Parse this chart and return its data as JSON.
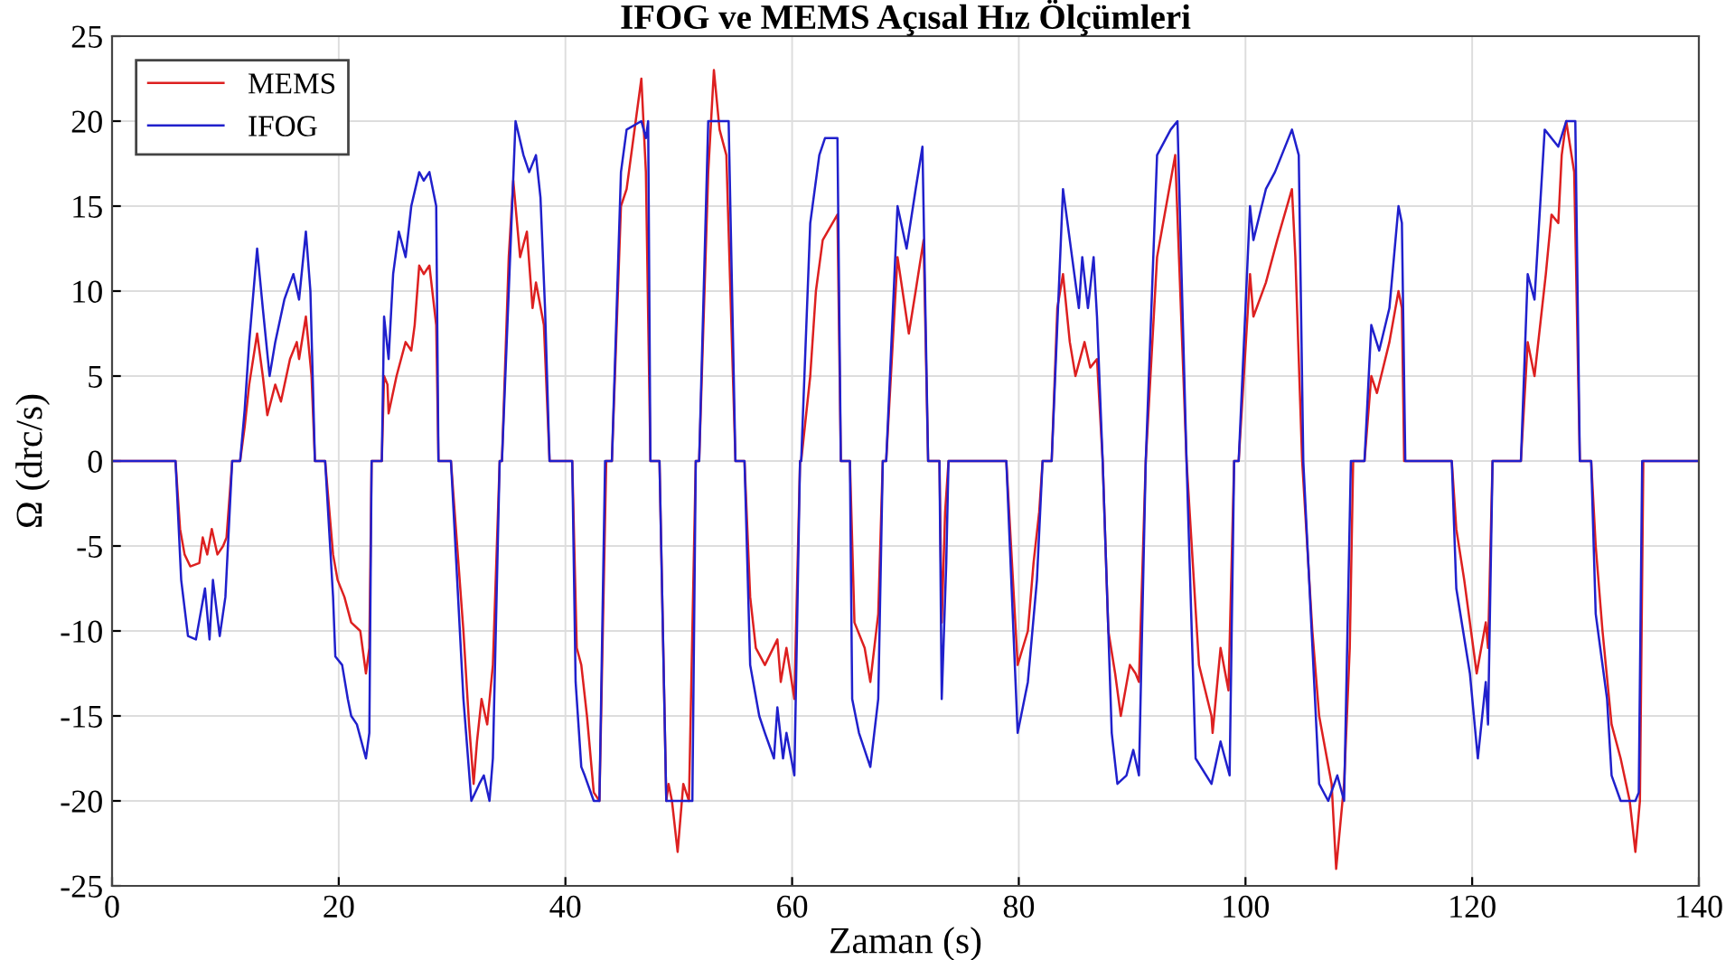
{
  "chart_data": {
    "type": "line",
    "title": "IFOG ve MEMS Açısal Hız Ölçümleri",
    "xlabel": "Zaman (s)",
    "ylabel": "Ω (drc/s)",
    "xlim": [
      0,
      140
    ],
    "xticks": [
      0,
      20,
      40,
      60,
      80,
      100,
      120,
      140
    ],
    "ylim": [
      -25,
      25
    ],
    "yticks": [
      -25,
      -20,
      -15,
      -10,
      -5,
      0,
      5,
      10,
      15,
      20,
      25
    ],
    "grid": true,
    "legend": "top left",
    "line_style": "solid",
    "marker": "none",
    "series": [
      {
        "name": "MEMS",
        "color": "#dd2020",
        "x": [
          0,
          5.6,
          6,
          6.4,
          6.9,
          7.7,
          8,
          8.4,
          8.8,
          9.3,
          9.8,
          10.1,
          10.6,
          11.3,
          11.7,
          12.1,
          12.8,
          13.3,
          13.7,
          14.4,
          14.9,
          15.7,
          16.3,
          16.5,
          17.1,
          17.6,
          17.9,
          18.8,
          19.5,
          19.9,
          20.5,
          21.1,
          21.9,
          22.4,
          22.7,
          22.9,
          23.8,
          24,
          24.3,
          24.4,
          25.1,
          25.9,
          26.4,
          26.7,
          27.1,
          27.5,
          28,
          28.6,
          28.8,
          29.9,
          31,
          31.5,
          31.9,
          32.2,
          32.6,
          33.1,
          33.6,
          34.2,
          34.4,
          35,
          35.4,
          36,
          36.6,
          37.1,
          37.4,
          38.1,
          38.6,
          40.6,
          41,
          41.4,
          41.9,
          42.5,
          43,
          43.6,
          44.1,
          44.9,
          45.4,
          45.9,
          46.7,
          47.1,
          47.5,
          48.3,
          48.9,
          49.1,
          49.4,
          49.9,
          50.4,
          50.9,
          51.5,
          51.8,
          52.6,
          53.1,
          53.6,
          54.2,
          55,
          55.8,
          56.3,
          56.8,
          57.6,
          58.7,
          59,
          59.5,
          60.2,
          60.7,
          60.8,
          61.6,
          62.1,
          62.7,
          64,
          64.3,
          65.1,
          65.5,
          66.4,
          66.9,
          67.6,
          68,
          68.3,
          69.3,
          70.3,
          70.9,
          71.6,
          72,
          73,
          73.2,
          73.5,
          73.8,
          78.9,
          79.9,
          80.8,
          81.3,
          81.8,
          82.1,
          82.9,
          83.4,
          83.9,
          84.5,
          85,
          85.8,
          86.3,
          86.9,
          87.4,
          87.9,
          88.5,
          89,
          89.8,
          90.3,
          90.6,
          91.2,
          92.2,
          93.8,
          94.8,
          95.9,
          97,
          97.1,
          97.8,
          98.5,
          99,
          99.4,
          100.4,
          100.7,
          101.8,
          102.8,
          104.1,
          104.4,
          105,
          105.9,
          106.5,
          107.6,
          108,
          108.7,
          109.2,
          109.5,
          110.5,
          111.1,
          111.6,
          112.7,
          113.5,
          113.8,
          114,
          118.2,
          118.6,
          119.3,
          120.4,
          121.2,
          121.4,
          121.8,
          124.3,
          124.9,
          125.5,
          126.5,
          127,
          127.6,
          127.9,
          128.3,
          129,
          129.5,
          130.5,
          130.9,
          131.5,
          132.3,
          133.1,
          133.9,
          134.4,
          134.8,
          135.1,
          140
        ],
        "values": [
          0,
          0,
          -4,
          -5.5,
          -6.2,
          -6,
          -4.5,
          -5.5,
          -4,
          -5.5,
          -5,
          -4.5,
          0,
          0,
          2,
          4.5,
          7.5,
          5,
          2.7,
          4.5,
          3.5,
          6,
          7,
          6,
          8.5,
          5,
          0,
          0,
          -5.5,
          -7,
          -8,
          -9.5,
          -10,
          -12.5,
          -11,
          0,
          0,
          5,
          4.5,
          2.8,
          5,
          7,
          6.5,
          8,
          11.5,
          11,
          11.5,
          8,
          0,
          0,
          -10,
          -15.5,
          -19,
          -16.5,
          -14,
          -15.5,
          -12,
          0,
          0,
          12,
          16.5,
          12,
          13.5,
          9,
          10.5,
          8,
          0,
          0,
          -11,
          -12,
          -15,
          -19.5,
          -20,
          0,
          0,
          15,
          16,
          18.5,
          22.5,
          17,
          0,
          0,
          -20,
          -19,
          -20,
          -23,
          -19,
          -20,
          0,
          0,
          17,
          23,
          19.5,
          18,
          0,
          0,
          -8,
          -11,
          -12,
          -10.5,
          -13,
          -11,
          -14,
          0,
          0,
          5,
          10,
          13,
          14.5,
          0,
          0,
          -9.5,
          -11,
          -13,
          -9,
          0,
          0,
          12,
          7.5,
          10,
          13,
          0,
          0,
          -9.5,
          -3,
          0,
          0,
          -12,
          -10,
          -6,
          -3,
          0,
          0,
          9,
          11,
          7,
          5,
          7,
          5.5,
          6,
          0,
          -10,
          -12.5,
          -15,
          -12,
          -12.5,
          -13,
          0,
          12,
          18,
          0,
          -12,
          -15,
          -16,
          -11,
          -13.5,
          0,
          0,
          11,
          8.5,
          10.5,
          13,
          16,
          12,
          0,
          -10,
          -15,
          -19,
          -24,
          -19,
          -11,
          0,
          0,
          5,
          4,
          7,
          10,
          9,
          0,
          0,
          -4,
          -7,
          -12.5,
          -9.5,
          -11,
          0,
          0,
          7,
          5,
          11,
          14.5,
          14,
          18,
          20,
          17,
          0,
          0,
          -5,
          -10,
          -15.5,
          -17.5,
          -20,
          -23,
          -20,
          0,
          0
        ]
      },
      {
        "name": "IFOG",
        "color": "#2020cc",
        "x": [
          0,
          5.6,
          6.1,
          6.7,
          7.4,
          8.2,
          8.6,
          8.9,
          9.5,
          10,
          10.6,
          11.3,
          11.7,
          12.1,
          12.8,
          13.3,
          13.9,
          14.4,
          15.2,
          16,
          16.5,
          17.1,
          17.5,
          17.9,
          18.8,
          19.5,
          19.7,
          20.3,
          20.8,
          21.1,
          21.6,
          22.4,
          22.7,
          22.9,
          23.8,
          24,
          24.4,
          24.8,
          25.3,
          25.9,
          26.4,
          27.1,
          27.5,
          28,
          28.6,
          28.8,
          29.9,
          31,
          31.7,
          32.4,
          32.8,
          33.3,
          33.6,
          34.2,
          34.4,
          35.6,
          36.3,
          36.8,
          37.4,
          37.8,
          38.2,
          38.6,
          40.6,
          40.9,
          41.4,
          41.7,
          42.5,
          43,
          43.5,
          44.1,
          44.9,
          45.4,
          46.7,
          47.1,
          47.3,
          47.5,
          48.3,
          48.9,
          51.2,
          51.5,
          51.8,
          52.6,
          54.4,
          55,
          55.8,
          56.3,
          57.1,
          57.6,
          58.4,
          58.7,
          59.2,
          59.5,
          60.2,
          60.7,
          60.8,
          61.6,
          62.4,
          62.9,
          64,
          64.3,
          65.1,
          65.3,
          65.9,
          66.9,
          67.6,
          68,
          68.3,
          69.3,
          70.1,
          70.9,
          71.5,
          72,
          73,
          73.2,
          73.6,
          73.8,
          78.9,
          79.9,
          80.8,
          81.6,
          82.1,
          82.9,
          83.9,
          84.7,
          85.3,
          85.6,
          86.1,
          86.6,
          86.9,
          87.4,
          88.2,
          88.7,
          89.5,
          90.1,
          90.6,
          91.2,
          92.2,
          93.4,
          94,
          94.8,
          95.6,
          97,
          97.8,
          98.6,
          99,
          99.4,
          100.4,
          100.7,
          101.8,
          102.6,
          104.1,
          104.7,
          105.1,
          106.5,
          107.3,
          108.1,
          108.7,
          109.3,
          110.5,
          111.1,
          111.8,
          112.7,
          113.5,
          113.8,
          114.1,
          118.2,
          118.6,
          119.8,
          120.5,
          121.2,
          121.4,
          121.8,
          124.3,
          124.9,
          125.5,
          126.4,
          127.6,
          128.3,
          129.1,
          129.5,
          130.5,
          130.9,
          131.9,
          132.3,
          133.1,
          134.4,
          134.7,
          135,
          140
        ],
        "values": [
          0,
          0,
          -7,
          -10.3,
          -10.5,
          -7.5,
          -10.5,
          -7,
          -10.3,
          -8,
          0,
          0,
          3,
          7,
          12.5,
          9,
          5,
          7,
          9.5,
          11,
          9.5,
          13.5,
          10,
          0,
          0,
          -8,
          -11.5,
          -12,
          -14,
          -15,
          -15.5,
          -17.5,
          -16,
          0,
          0,
          8.5,
          6,
          11,
          13.5,
          12,
          15,
          17,
          16.5,
          17,
          15,
          0,
          0,
          -14,
          -20,
          -19,
          -18.5,
          -20,
          -17.5,
          0,
          0,
          20,
          18,
          17,
          18,
          15.5,
          9,
          0,
          0,
          -13,
          -18,
          -18.5,
          -20,
          -20,
          0,
          0,
          17,
          19.5,
          20,
          19,
          20,
          0,
          0,
          -20,
          -20,
          0,
          0,
          20,
          20,
          0,
          0,
          -12,
          -15,
          -16,
          -17.5,
          -14.5,
          -17.5,
          -16,
          -18.5,
          0,
          0,
          14,
          18,
          19,
          19,
          0,
          0,
          -14,
          -16,
          -18,
          -14,
          0,
          0,
          15,
          12.5,
          16,
          18.5,
          0,
          0,
          -14,
          -6,
          0,
          0,
          -16,
          -13,
          -7,
          0,
          0,
          16,
          12,
          9,
          12,
          9,
          12,
          8.5,
          0,
          -16,
          -19,
          -18.5,
          -17,
          -18.5,
          0,
          18,
          19.5,
          20,
          0,
          -17.5,
          -19,
          -16.5,
          -18.5,
          0,
          0,
          15,
          13,
          16,
          17,
          19.5,
          18,
          0,
          -19,
          -20,
          -18.5,
          -20,
          0,
          0,
          8,
          6.5,
          9,
          15,
          14,
          0,
          0,
          -7.5,
          -12.5,
          -17.5,
          -13,
          -15.5,
          0,
          0,
          11,
          9.5,
          19.5,
          18.5,
          20,
          20,
          0,
          0,
          -9,
          -14,
          -18.5,
          -20,
          -20,
          -19.5,
          0,
          0
        ]
      }
    ]
  }
}
